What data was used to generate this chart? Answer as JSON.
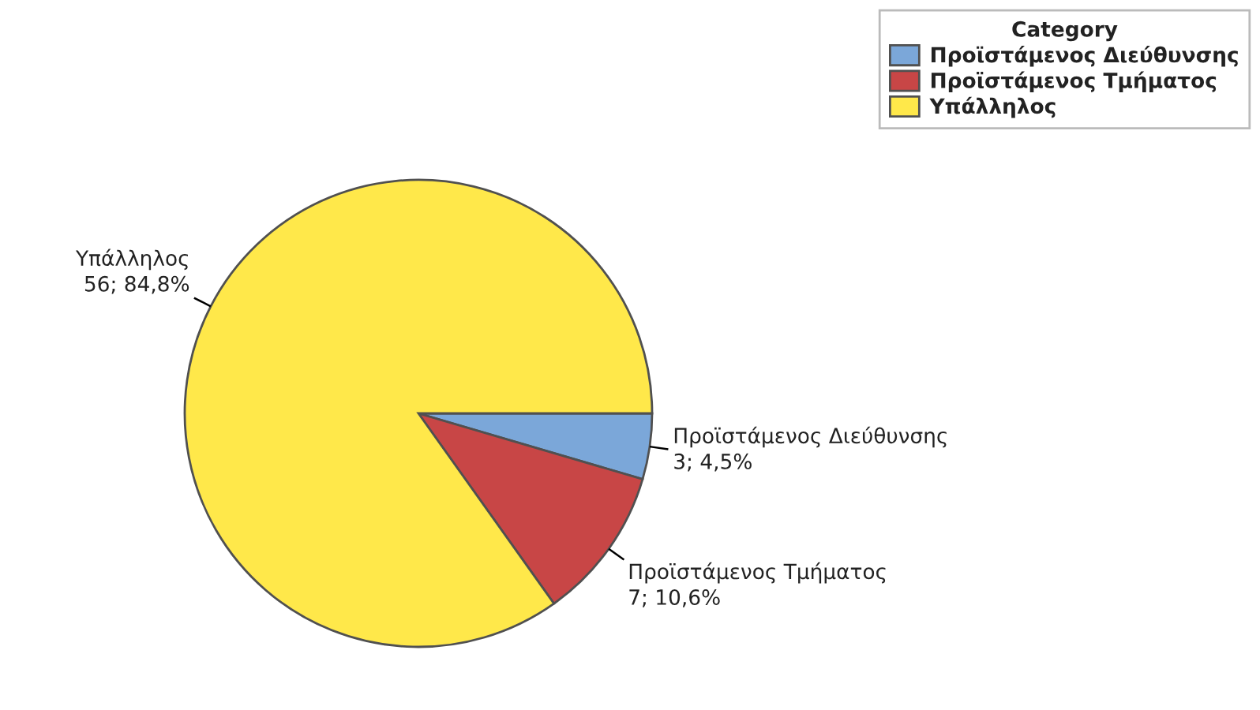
{
  "chart_data": {
    "type": "pie",
    "categories": [
      "Προϊστάμενος Διεύθυνσης",
      "Προϊστάμενος Τμήματος",
      "Υπάλληλος"
    ],
    "values": [
      3,
      7,
      56
    ],
    "colors": [
      "#7ba7d9",
      "#c84646",
      "#ffe84a"
    ],
    "value_labels": [
      "3; 4,5%",
      "7; 10,6%",
      "56; 84,8%"
    ],
    "legend": "top right",
    "legend_title": "Category"
  }
}
